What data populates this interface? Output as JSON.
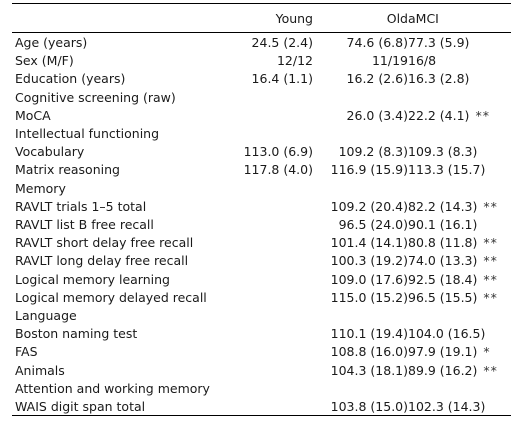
{
  "columns": {
    "young": "Young",
    "old": "Old",
    "amci": "aMCI"
  },
  "rows": [
    {
      "type": "row",
      "label": "Age (years)",
      "young": "24.5 (2.4)",
      "old": "74.6 (6.8)",
      "amci": "77.3 (5.9)",
      "sig": ""
    },
    {
      "type": "row",
      "label": "Sex (M/F)",
      "young": "12/12",
      "old": "11/19",
      "amci": "16/8",
      "sig": ""
    },
    {
      "type": "row",
      "label": "Education (years)",
      "young": "16.4 (1.1)",
      "old": "16.2 (2.6)",
      "amci": "16.3 (2.8)",
      "sig": ""
    },
    {
      "type": "section",
      "label": "Cognitive screening (raw)"
    },
    {
      "type": "row",
      "label": "MoCA",
      "young": "",
      "old": "26.0 (3.4)",
      "amci": "22.2 (4.1)",
      "sig": "**"
    },
    {
      "type": "section",
      "label": "Intellectual functioning"
    },
    {
      "type": "row",
      "label": "Vocabulary",
      "young": "113.0 (6.9)",
      "old": "109.2 (8.3)",
      "amci": "109.3 (8.3)",
      "sig": ""
    },
    {
      "type": "row",
      "label": "Matrix reasoning",
      "young": "117.8 (4.0)",
      "old": "116.9 (15.9)",
      "amci": "113.3 (15.7)",
      "sig": ""
    },
    {
      "type": "section",
      "label": "Memory"
    },
    {
      "type": "row",
      "label": "RAVLT trials 1–5 total",
      "young": "",
      "old": "109.2 (20.4)",
      "amci": "82.2 (14.3)",
      "sig": "**"
    },
    {
      "type": "row",
      "label": "RAVLT list B free recall",
      "young": "",
      "old": "96.5 (24.0)",
      "amci": "90.1 (16.1)",
      "sig": ""
    },
    {
      "type": "row",
      "label": "RAVLT short delay free recall",
      "young": "",
      "old": "101.4 (14.1)",
      "amci": "80.8 (11.8)",
      "sig": "**"
    },
    {
      "type": "row",
      "label": "RAVLT long delay free recall",
      "young": "",
      "old": "100.3 (19.2)",
      "amci": "74.0 (13.3)",
      "sig": "**"
    },
    {
      "type": "row",
      "label": "Logical memory learning",
      "young": "",
      "old": "109.0 (17.6)",
      "amci": "92.5 (18.4)",
      "sig": "**"
    },
    {
      "type": "row",
      "label": "Logical memory delayed recall",
      "young": "",
      "old": "115.0 (15.2)",
      "amci": "96.5 (15.5)",
      "sig": "**"
    },
    {
      "type": "section",
      "label": "Language"
    },
    {
      "type": "row",
      "label": "Boston naming test",
      "young": "",
      "old": "110.1 (19.4)",
      "amci": "104.0 (16.5)",
      "sig": ""
    },
    {
      "type": "row",
      "label": "FAS",
      "young": "",
      "old": "108.8 (16.0)",
      "amci": "97.9 (19.1)",
      "sig": "*"
    },
    {
      "type": "row",
      "label": "Animals",
      "young": "",
      "old": "104.3 (18.1)",
      "amci": "89.9 (16.2)",
      "sig": "**"
    },
    {
      "type": "section",
      "label": "Attention and working memory"
    },
    {
      "type": "row",
      "label": "WAIS digit span total",
      "young": "",
      "old": "103.8 (15.0)",
      "amci": "102.3 (14.3)",
      "sig": ""
    }
  ]
}
